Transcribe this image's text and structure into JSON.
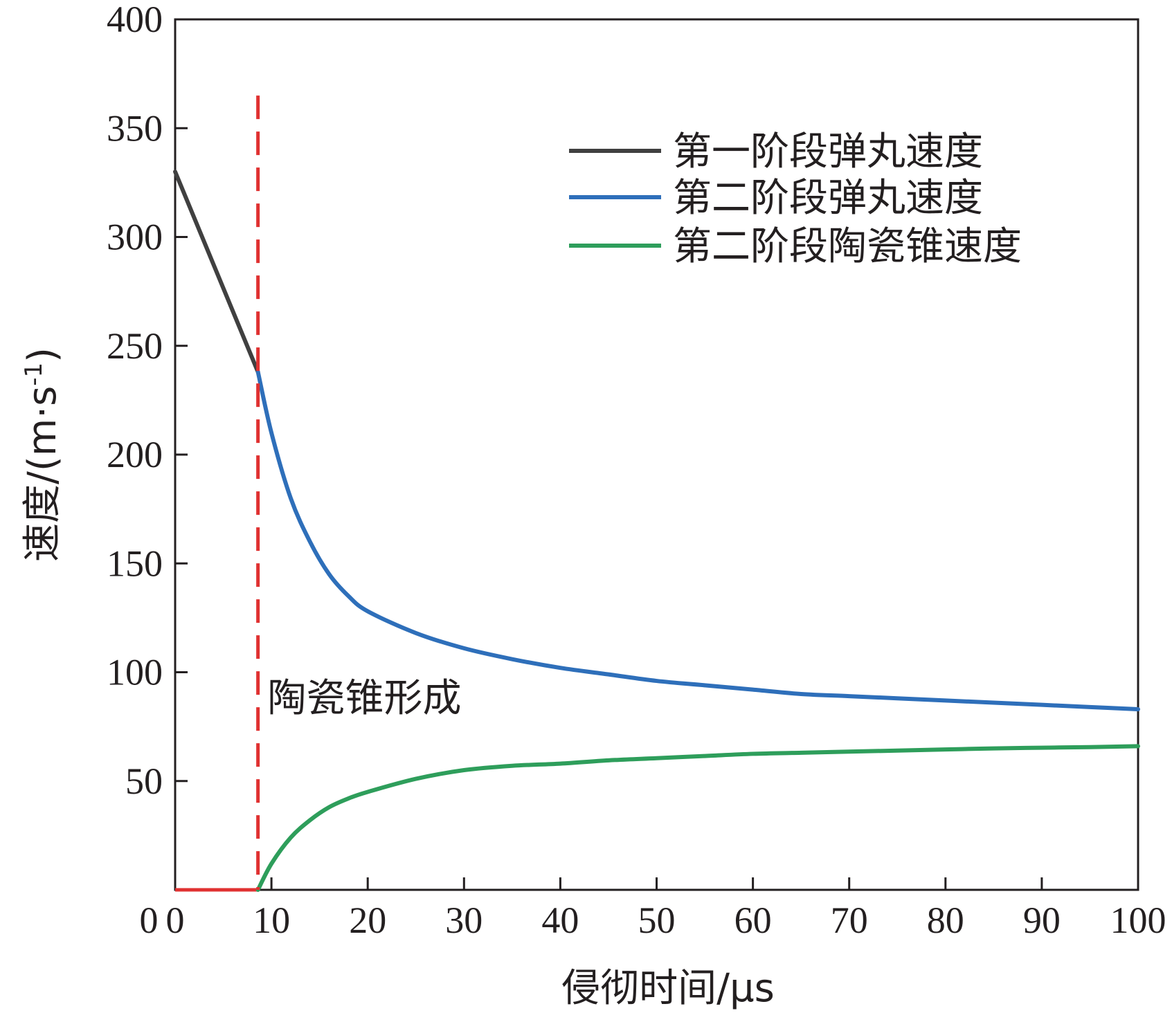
{
  "chart_data": {
    "type": "line",
    "xlabel": "侵彻时间/μs",
    "ylabel": "速度/(m·s",
    "ylabel_sup": "-1",
    "ylabel_close": ")",
    "xlim": [
      0,
      100
    ],
    "ylim": [
      0,
      400
    ],
    "x_ticks": [
      0,
      10,
      20,
      30,
      40,
      50,
      60,
      70,
      80,
      90,
      100
    ],
    "y_ticks": [
      50,
      100,
      150,
      200,
      250,
      300,
      350,
      400
    ],
    "grid": false,
    "legend_position": "top-right",
    "series": [
      {
        "name": "第一阶段弹丸速度",
        "color": "#404040",
        "x": [
          0,
          8.6
        ],
        "y": [
          330,
          238
        ]
      },
      {
        "name": "第二阶段弹丸速度",
        "color": "#2e6fba",
        "x": [
          8.6,
          10,
          12,
          14,
          16,
          18,
          20,
          25,
          30,
          35,
          40,
          45,
          50,
          55,
          60,
          65,
          70,
          75,
          80,
          85,
          90,
          95,
          100
        ],
        "y": [
          238,
          210,
          180,
          160,
          145,
          135,
          128,
          118,
          111,
          106,
          102,
          99,
          96,
          94,
          92,
          90,
          89,
          88,
          87,
          86,
          85,
          84,
          83
        ]
      },
      {
        "name": "第二阶段陶瓷锥速度",
        "color": "#2e9e5b",
        "x": [
          8.6,
          10,
          12,
          14,
          16,
          18,
          20,
          25,
          30,
          35,
          40,
          45,
          50,
          55,
          60,
          65,
          70,
          75,
          80,
          85,
          90,
          95,
          100
        ],
        "y": [
          0,
          12,
          24,
          32,
          38,
          42,
          45,
          51,
          55,
          57,
          58,
          59.5,
          60.5,
          61.5,
          62.5,
          63,
          63.5,
          64,
          64.5,
          65,
          65.3,
          65.6,
          66
        ]
      }
    ],
    "extra_lines": [
      {
        "kind": "baseline",
        "color": "#e03131",
        "x": [
          0,
          8.6
        ],
        "y": [
          0,
          0
        ]
      }
    ],
    "annotations": [
      {
        "kind": "vline",
        "x": 8.6,
        "color": "#e03131",
        "dashed": true,
        "y_top": 365
      },
      {
        "text": "陶瓷锥形成",
        "x": 9.6,
        "y": 82
      }
    ]
  }
}
